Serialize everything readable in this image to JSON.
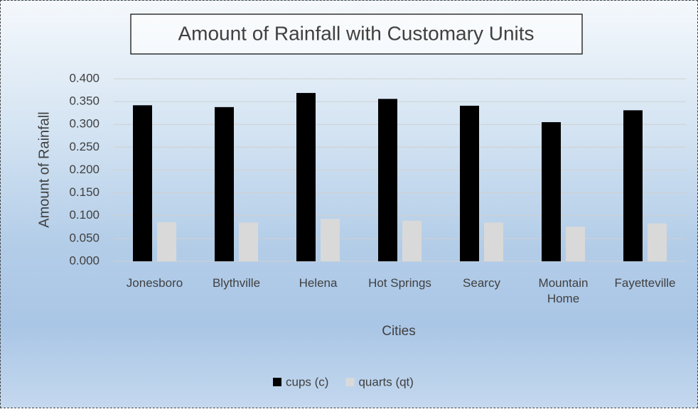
{
  "chart_data": {
    "type": "bar",
    "title": "Amount of Rainfall with Customary Units",
    "x_label": "Cities",
    "y_label": "Amount of Rainfall",
    "categories": [
      "Jonesboro",
      "Blythville",
      "Helena",
      "Hot Springs",
      "Searcy",
      "Mountain Home",
      "Fayetteville"
    ],
    "series": [
      {
        "name": "cups (c)",
        "color": "#000000",
        "values": [
          0.342,
          0.338,
          0.369,
          0.356,
          0.341,
          0.305,
          0.331
        ]
      },
      {
        "name": "quarts (qt)",
        "color": "#d9d9d9",
        "values": [
          0.086,
          0.085,
          0.093,
          0.089,
          0.085,
          0.076,
          0.083
        ]
      }
    ],
    "ylim": [
      0,
      0.4
    ],
    "yticks": [
      {
        "value": 0,
        "label": "0.000"
      },
      {
        "value": 0.05,
        "label": "0.050"
      },
      {
        "value": 0.1,
        "label": "0.100"
      },
      {
        "value": 0.15,
        "label": "0.150"
      },
      {
        "value": 0.2,
        "label": "0.200"
      },
      {
        "value": 0.25,
        "label": "0.250"
      },
      {
        "value": 0.3,
        "label": "0.300"
      },
      {
        "value": 0.35,
        "label": "0.350"
      },
      {
        "value": 0.4,
        "label": "0.400"
      }
    ],
    "grid": true,
    "legend": "bottom"
  }
}
